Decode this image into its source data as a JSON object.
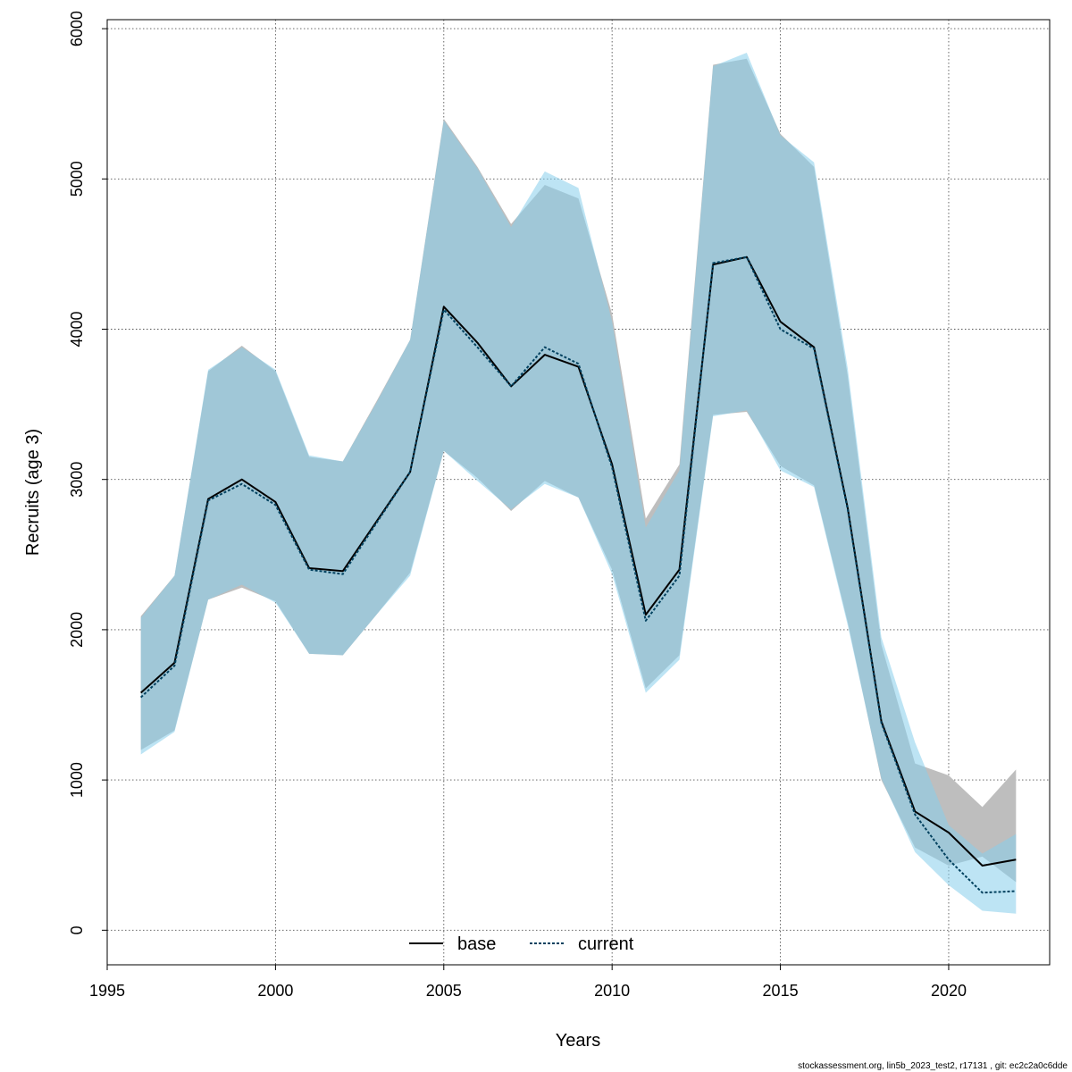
{
  "chart_data": {
    "type": "line",
    "title": "",
    "xlabel": "Years",
    "ylabel": "Recruits (age 3)",
    "xlim": [
      1995,
      2023
    ],
    "ylim": [
      -230,
      6060
    ],
    "x_ticks": [
      1995,
      2000,
      2005,
      2010,
      2015,
      2020
    ],
    "y_ticks": [
      0,
      1000,
      2000,
      3000,
      4000,
      5000,
      6000
    ],
    "grid": true,
    "legend_position": "bottom",
    "x": [
      1996,
      1997,
      1998,
      1999,
      2000,
      2001,
      2002,
      2003,
      2004,
      2005,
      2006,
      2007,
      2008,
      2009,
      2010,
      2011,
      2012,
      2013,
      2014,
      2015,
      2016,
      2017,
      2018,
      2019,
      2020,
      2021,
      2022
    ],
    "series": [
      {
        "name": "base",
        "color": "#000000",
        "band_color": "#bebebe",
        "values": [
          1580,
          1780,
          2870,
          3000,
          2850,
          2410,
          2390,
          2720,
          3050,
          4150,
          3910,
          3620,
          3830,
          3750,
          3100,
          2100,
          2400,
          4430,
          4480,
          4050,
          3880,
          2810,
          1390,
          790,
          650,
          430,
          470
        ],
        "lower": [
          1200,
          1330,
          2200,
          2280,
          2190,
          1840,
          1830,
          2100,
          2380,
          3190,
          3010,
          2790,
          2990,
          2880,
          2400,
          1610,
          1830,
          3430,
          3450,
          3090,
          2960,
          2050,
          1000,
          550,
          430,
          490,
          320
        ],
        "upper": [
          2090,
          2360,
          3720,
          3890,
          3720,
          3150,
          3120,
          3520,
          3930,
          5400,
          5080,
          4700,
          4960,
          4870,
          4100,
          2740,
          3100,
          5760,
          5800,
          5300,
          5080,
          3690,
          1900,
          1110,
          1030,
          820,
          1070
        ]
      },
      {
        "name": "current",
        "color": "#01415f",
        "band_color": "#87ceeb",
        "values": [
          1550,
          1760,
          2860,
          2970,
          2830,
          2400,
          2370,
          2710,
          3050,
          4130,
          3880,
          3620,
          3880,
          3770,
          3080,
          2060,
          2360,
          4440,
          4480,
          4000,
          3870,
          2800,
          1380,
          770,
          470,
          250,
          260
        ],
        "lower": [
          1170,
          1320,
          2200,
          2300,
          2180,
          1840,
          1830,
          2100,
          2360,
          3190,
          2990,
          2800,
          2970,
          2880,
          2370,
          1580,
          1800,
          3420,
          3460,
          3060,
          2950,
          2030,
          1010,
          520,
          300,
          130,
          110
        ],
        "upper": [
          2080,
          2360,
          3730,
          3880,
          3730,
          3160,
          3120,
          3510,
          3930,
          5390,
          5070,
          4680,
          5050,
          4940,
          4050,
          2680,
          3060,
          5750,
          5840,
          5290,
          5110,
          3740,
          1950,
          1250,
          700,
          510,
          640
        ]
      }
    ]
  },
  "footer": {
    "source_text": "stockassessment.org, lin5b_2023_test2, r17131 , git: ec2c2a0c6dde"
  }
}
